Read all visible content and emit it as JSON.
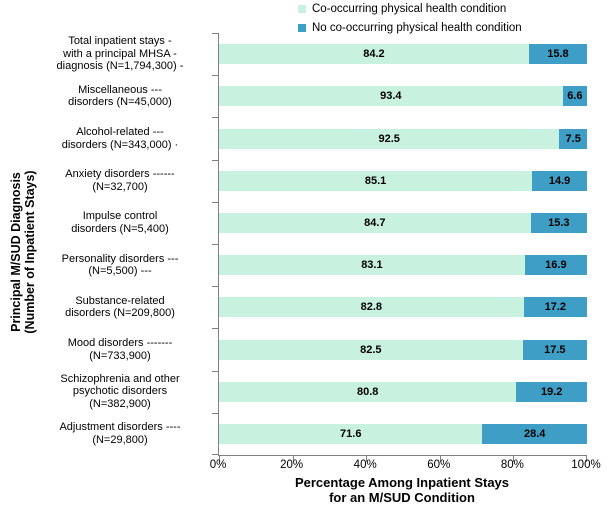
{
  "colors": {
    "co_occurring": "#c9f1df",
    "no_co_occurring": "#3f9ec6",
    "axis": "#808080",
    "text": "#000000",
    "background": "#ffffff"
  },
  "legend": {
    "items": [
      {
        "label": "Co-occurring physical health condition",
        "color": "#c9f1df"
      },
      {
        "label": "No co-occurring physical health condition",
        "color": "#3f9ec6"
      }
    ]
  },
  "axis": {
    "y_title_line1": "Principal M/SUD Diagnosis",
    "y_title_line2": "(Number of Inpatient Stays)",
    "x_title_line1": "Percentage Among Inpatient Stays",
    "x_title_line2": "for an M/SUD Condition"
  },
  "chart_data": {
    "type": "bar",
    "orientation": "horizontal",
    "stacked": true,
    "xlabel": "Percentage Among Inpatient Stays for an M/SUD Condition",
    "ylabel": "Principal M/SUD Diagnosis (Number of Inpatient Stays)",
    "xlim": [
      0,
      100
    ],
    "x_ticks": [
      "0%",
      "20%",
      "40%",
      "60%",
      "80%",
      "100%"
    ],
    "grid": false,
    "legend_position": "top",
    "categories": [
      {
        "label_lines": [
          "Total inpatient stays -",
          "with a principal MHSA -",
          "diagnosis (N=1,794,300) -"
        ]
      },
      {
        "label_lines": [
          "Miscellaneous ---",
          "disorders (N=45,000)"
        ]
      },
      {
        "label_lines": [
          "Alcohol-related ---",
          "disorders (N=343,000) ·"
        ]
      },
      {
        "label_lines": [
          "Anxiety disorders ------",
          "(N=32,700)"
        ]
      },
      {
        "label_lines": [
          "Impulse control",
          "disorders (N=5,400)"
        ]
      },
      {
        "label_lines": [
          "Personality disorders ---",
          "(N=5,500) ---"
        ]
      },
      {
        "label_lines": [
          "Substance-related",
          "disorders (N=209,800)"
        ]
      },
      {
        "label_lines": [
          "Mood disorders -------",
          "(N=733,900)"
        ]
      },
      {
        "label_lines": [
          "Schizophrenia and other",
          "psychotic disorders",
          "(N=382,900)"
        ]
      },
      {
        "label_lines": [
          "Adjustment disorders ----",
          "(N=29,800)"
        ]
      }
    ],
    "series": [
      {
        "name": "Co-occurring physical health condition",
        "color": "#c9f1df",
        "values": [
          84.2,
          93.4,
          92.5,
          85.1,
          84.7,
          83.1,
          82.8,
          82.5,
          80.8,
          71.6
        ]
      },
      {
        "name": "No co-occurring physical health condition",
        "color": "#3f9ec6",
        "values": [
          15.8,
          6.6,
          7.5,
          14.9,
          15.3,
          16.9,
          17.2,
          17.5,
          19.2,
          28.4
        ]
      }
    ]
  }
}
